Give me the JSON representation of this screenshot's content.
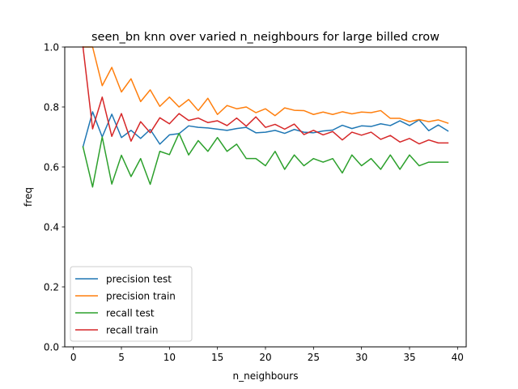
{
  "chart_data": {
    "type": "line",
    "title": "seen_bn knn over varied n_neighbours for large billed crow",
    "xlabel": "n_neighbours",
    "ylabel": "freq",
    "xlim": [
      -0.9,
      40.9
    ],
    "ylim": [
      0.0,
      1.0
    ],
    "xticks": [
      0,
      5,
      10,
      15,
      20,
      25,
      30,
      35,
      40
    ],
    "yticks": [
      0.0,
      0.2,
      0.4,
      0.6,
      0.8,
      1.0
    ],
    "xtick_labels": [
      "0",
      "5",
      "10",
      "15",
      "20",
      "25",
      "30",
      "35",
      "40"
    ],
    "ytick_labels": [
      "0.0",
      "0.2",
      "0.4",
      "0.6",
      "0.8",
      "1.0"
    ],
    "legend_position": "lower-left",
    "grid": false,
    "x": [
      1,
      2,
      3,
      4,
      5,
      6,
      7,
      8,
      9,
      10,
      11,
      12,
      13,
      14,
      15,
      16,
      17,
      18,
      19,
      20,
      21,
      22,
      23,
      24,
      25,
      26,
      27,
      28,
      29,
      30,
      31,
      32,
      33,
      34,
      35,
      36,
      37,
      38,
      39
    ],
    "series": [
      {
        "name": "precision test",
        "color": "#1f77b4",
        "values": [
          0.667,
          0.784,
          0.7,
          0.776,
          0.698,
          0.722,
          0.695,
          0.725,
          0.676,
          0.707,
          0.711,
          0.737,
          0.732,
          0.73,
          0.726,
          0.722,
          0.728,
          0.732,
          0.714,
          0.716,
          0.722,
          0.712,
          0.725,
          0.716,
          0.714,
          0.72,
          0.723,
          0.739,
          0.728,
          0.737,
          0.735,
          0.744,
          0.738,
          0.754,
          0.738,
          0.757,
          0.721,
          0.74,
          0.72
        ]
      },
      {
        "name": "precision train",
        "color": "#ff7f0e",
        "values": [
          1.0,
          1.0,
          0.871,
          0.932,
          0.85,
          0.894,
          0.818,
          0.857,
          0.802,
          0.833,
          0.8,
          0.825,
          0.788,
          0.829,
          0.775,
          0.805,
          0.794,
          0.8,
          0.781,
          0.794,
          0.771,
          0.797,
          0.789,
          0.788,
          0.775,
          0.783,
          0.775,
          0.784,
          0.777,
          0.783,
          0.781,
          0.788,
          0.762,
          0.762,
          0.751,
          0.758,
          0.751,
          0.757,
          0.746
        ]
      },
      {
        "name": "recall test",
        "color": "#2ca02c",
        "values": [
          0.667,
          0.533,
          0.7,
          0.543,
          0.639,
          0.568,
          0.628,
          0.542,
          0.652,
          0.641,
          0.712,
          0.64,
          0.688,
          0.652,
          0.698,
          0.652,
          0.676,
          0.628,
          0.628,
          0.604,
          0.652,
          0.592,
          0.64,
          0.604,
          0.628,
          0.616,
          0.628,
          0.58,
          0.64,
          0.604,
          0.628,
          0.592,
          0.64,
          0.592,
          0.64,
          0.604,
          0.616,
          0.616,
          0.616
        ]
      },
      {
        "name": "recall train",
        "color": "#d62728",
        "values": [
          1.0,
          0.727,
          0.833,
          0.702,
          0.778,
          0.686,
          0.751,
          0.714,
          0.764,
          0.744,
          0.778,
          0.755,
          0.763,
          0.748,
          0.754,
          0.738,
          0.763,
          0.736,
          0.767,
          0.732,
          0.742,
          0.726,
          0.743,
          0.708,
          0.722,
          0.707,
          0.718,
          0.69,
          0.716,
          0.706,
          0.716,
          0.692,
          0.705,
          0.683,
          0.695,
          0.677,
          0.69,
          0.68,
          0.68
        ]
      }
    ]
  }
}
